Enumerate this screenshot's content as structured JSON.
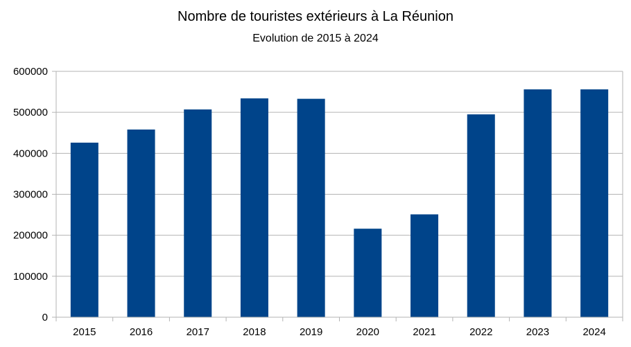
{
  "chart_data": {
    "type": "bar",
    "title": "Nombre de touristes extérieurs à La Réunion",
    "subtitle": "Evolution de 2015 à 2024",
    "xlabel": "",
    "ylabel": "",
    "categories": [
      "2015",
      "2016",
      "2017",
      "2018",
      "2019",
      "2020",
      "2021",
      "2022",
      "2023",
      "2024"
    ],
    "values": [
      426000,
      458000,
      507000,
      534000,
      533000,
      216000,
      251000,
      495000,
      556000,
      556000
    ],
    "ylim": [
      0,
      600000
    ],
    "yticks": [
      0,
      100000,
      200000,
      300000,
      400000,
      500000,
      600000
    ],
    "ytick_labels": [
      "0",
      "100000",
      "200000",
      "300000",
      "400000",
      "500000",
      "600000"
    ],
    "grid": true,
    "legend": "none",
    "bar_color": "#00448a",
    "grid_color": "#b3b3b3"
  }
}
